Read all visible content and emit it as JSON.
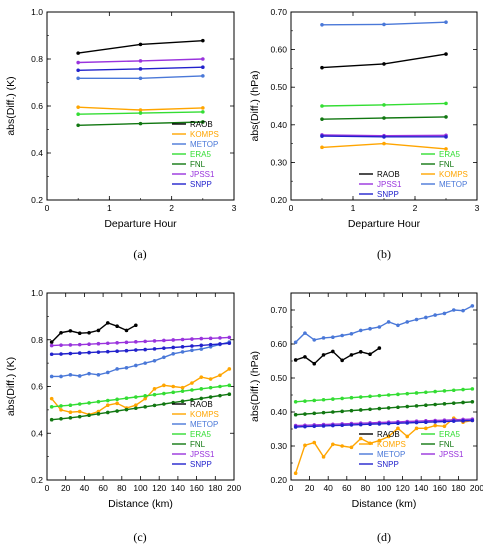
{
  "chart_data": [
    {
      "type": "line",
      "panel_label": "(a)",
      "xlabel": "Departure Hour",
      "ylabel": "abs(Diff.) (K)",
      "xlim": [
        0,
        3
      ],
      "ylim": [
        0.2,
        1.0
      ],
      "xticks": [
        0,
        1,
        2,
        3
      ],
      "yticks": [
        0.2,
        0.4,
        0.6,
        0.8,
        1.0
      ],
      "ytick_labels": [
        "0.2",
        "0.4",
        "0.6",
        "0.8",
        "1.0"
      ],
      "legend_position": "lower-right",
      "legend_columns": 1,
      "series": [
        {
          "name": "RAOB",
          "color": "#000000",
          "x": [
            0.5,
            1.5,
            2.5
          ],
          "y": [
            0.825,
            0.862,
            0.878
          ]
        },
        {
          "name": "KOMPS",
          "color": "#ffa500",
          "x": [
            0.5,
            1.5,
            2.5
          ],
          "y": [
            0.595,
            0.583,
            0.592
          ]
        },
        {
          "name": "METOP",
          "color": "#4a78d8",
          "x": [
            0.5,
            1.5,
            2.5
          ],
          "y": [
            0.718,
            0.718,
            0.728
          ]
        },
        {
          "name": "ERA5",
          "color": "#33dd33",
          "x": [
            0.5,
            1.5,
            2.5
          ],
          "y": [
            0.565,
            0.57,
            0.575
          ]
        },
        {
          "name": "FNL",
          "color": "#117711",
          "x": [
            0.5,
            1.5,
            2.5
          ],
          "y": [
            0.518,
            0.525,
            0.532
          ]
        },
        {
          "name": "JPSS1",
          "color": "#9933dd",
          "x": [
            0.5,
            1.5,
            2.5
          ],
          "y": [
            0.785,
            0.792,
            0.8
          ]
        },
        {
          "name": "SNPP",
          "color": "#2222cc",
          "x": [
            0.5,
            1.5,
            2.5
          ],
          "y": [
            0.752,
            0.758,
            0.765
          ]
        }
      ]
    },
    {
      "type": "line",
      "panel_label": "(b)",
      "xlabel": "Departure Hour",
      "ylabel": "abs(Diff.) (hPa)",
      "xlim": [
        0,
        3
      ],
      "ylim": [
        0.2,
        0.7
      ],
      "xticks": [
        0,
        1,
        2,
        3
      ],
      "yticks": [
        0.2,
        0.3,
        0.4,
        0.5,
        0.6,
        0.7
      ],
      "ytick_labels": [
        "0.20",
        "0.30",
        "0.40",
        "0.50",
        "0.60",
        "0.70"
      ],
      "legend_position": "lower-right",
      "legend_columns": 2,
      "legend_order": [
        "ERA5",
        "FNL",
        "RAOB",
        "KOMPS",
        "JPSS1",
        "METOP",
        "SNPP"
      ],
      "series": [
        {
          "name": "RAOB",
          "color": "#000000",
          "x": [
            0.5,
            1.5,
            2.5
          ],
          "y": [
            0.552,
            0.562,
            0.588
          ]
        },
        {
          "name": "KOMPS",
          "color": "#ffa500",
          "x": [
            0.5,
            1.5,
            2.5
          ],
          "y": [
            0.34,
            0.35,
            0.336
          ]
        },
        {
          "name": "METOP",
          "color": "#4a78d8",
          "x": [
            0.5,
            1.5,
            2.5
          ],
          "y": [
            0.666,
            0.667,
            0.673
          ]
        },
        {
          "name": "ERA5",
          "color": "#33dd33",
          "x": [
            0.5,
            1.5,
            2.5
          ],
          "y": [
            0.45,
            0.453,
            0.457
          ]
        },
        {
          "name": "FNL",
          "color": "#117711",
          "x": [
            0.5,
            1.5,
            2.5
          ],
          "y": [
            0.415,
            0.418,
            0.421
          ]
        },
        {
          "name": "JPSS1",
          "color": "#9933dd",
          "x": [
            0.5,
            1.5,
            2.5
          ],
          "y": [
            0.373,
            0.371,
            0.372
          ]
        },
        {
          "name": "SNPP",
          "color": "#2222cc",
          "x": [
            0.5,
            1.5,
            2.5
          ],
          "y": [
            0.37,
            0.368,
            0.368
          ]
        }
      ]
    },
    {
      "type": "line",
      "panel_label": "(c)",
      "xlabel": "Distance (km)",
      "ylabel": "abs(Diff.) (K)",
      "xlim": [
        0,
        200
      ],
      "ylim": [
        0.2,
        1.0
      ],
      "xticks": [
        0,
        20,
        40,
        60,
        80,
        100,
        120,
        140,
        160,
        180,
        200
      ],
      "yticks": [
        0.2,
        0.4,
        0.6,
        0.8,
        1.0
      ],
      "ytick_labels": [
        "0.2",
        "0.4",
        "0.6",
        "0.8",
        "1.0"
      ],
      "legend_position": "lower-right",
      "legend_columns": 1,
      "series": [
        {
          "name": "RAOB",
          "color": "#000000",
          "x": [
            5,
            15,
            25,
            35,
            45,
            55,
            65,
            75,
            85,
            95
          ],
          "y": [
            0.79,
            0.83,
            0.838,
            0.828,
            0.83,
            0.84,
            0.872,
            0.858,
            0.84,
            0.862
          ]
        },
        {
          "name": "KOMPS",
          "color": "#ffa500",
          "x": [
            5,
            15,
            25,
            35,
            45,
            55,
            65,
            75,
            85,
            95,
            105,
            115,
            125,
            135,
            145,
            155,
            165,
            175,
            185,
            195
          ],
          "y": [
            0.548,
            0.5,
            0.49,
            0.493,
            0.48,
            0.493,
            0.52,
            0.528,
            0.508,
            0.52,
            0.548,
            0.59,
            0.605,
            0.6,
            0.595,
            0.615,
            0.64,
            0.632,
            0.648,
            0.675
          ]
        },
        {
          "name": "METOP",
          "color": "#4a78d8",
          "x": [
            5,
            15,
            25,
            35,
            45,
            55,
            65,
            75,
            85,
            95,
            105,
            115,
            125,
            135,
            145,
            155,
            165,
            175,
            185,
            195
          ],
          "y": [
            0.643,
            0.643,
            0.65,
            0.645,
            0.655,
            0.65,
            0.66,
            0.675,
            0.68,
            0.69,
            0.7,
            0.71,
            0.725,
            0.74,
            0.748,
            0.755,
            0.76,
            0.77,
            0.78,
            0.79
          ]
        },
        {
          "name": "ERA5",
          "color": "#33dd33",
          "x": [
            5,
            15,
            25,
            35,
            45,
            55,
            65,
            75,
            85,
            95,
            105,
            115,
            125,
            135,
            145,
            155,
            165,
            175,
            185,
            195
          ],
          "y": [
            0.513,
            0.517,
            0.52,
            0.525,
            0.53,
            0.535,
            0.54,
            0.545,
            0.55,
            0.555,
            0.56,
            0.565,
            0.57,
            0.575,
            0.58,
            0.585,
            0.59,
            0.595,
            0.6,
            0.605
          ]
        },
        {
          "name": "FNL",
          "color": "#117711",
          "x": [
            5,
            15,
            25,
            35,
            45,
            55,
            65,
            75,
            85,
            95,
            105,
            115,
            125,
            135,
            145,
            155,
            165,
            175,
            185,
            195
          ],
          "y": [
            0.458,
            0.462,
            0.466,
            0.471,
            0.477,
            0.483,
            0.489,
            0.495,
            0.501,
            0.507,
            0.513,
            0.519,
            0.525,
            0.531,
            0.537,
            0.543,
            0.549,
            0.555,
            0.561,
            0.567
          ]
        },
        {
          "name": "JPSS1",
          "color": "#9933dd",
          "x": [
            5,
            15,
            25,
            35,
            45,
            55,
            65,
            75,
            85,
            95,
            105,
            115,
            125,
            135,
            145,
            155,
            165,
            175,
            185,
            195
          ],
          "y": [
            0.775,
            0.777,
            0.778,
            0.779,
            0.781,
            0.783,
            0.785,
            0.787,
            0.789,
            0.791,
            0.793,
            0.795,
            0.797,
            0.799,
            0.801,
            0.803,
            0.805,
            0.806,
            0.808,
            0.81
          ]
        },
        {
          "name": "SNPP",
          "color": "#2222cc",
          "x": [
            5,
            15,
            25,
            35,
            45,
            55,
            65,
            75,
            85,
            95,
            105,
            115,
            125,
            135,
            145,
            155,
            165,
            175,
            185,
            195
          ],
          "y": [
            0.738,
            0.739,
            0.741,
            0.743,
            0.745,
            0.747,
            0.749,
            0.751,
            0.753,
            0.756,
            0.758,
            0.761,
            0.764,
            0.767,
            0.77,
            0.773,
            0.776,
            0.779,
            0.782,
            0.785
          ]
        }
      ]
    },
    {
      "type": "line",
      "panel_label": "(d)",
      "xlabel": "Distance (km)",
      "ylabel": "abs(Diff.) (hPa)",
      "xlim": [
        0,
        200
      ],
      "ylim": [
        0.2,
        0.75
      ],
      "xticks": [
        0,
        20,
        40,
        60,
        80,
        100,
        120,
        140,
        160,
        180,
        200
      ],
      "yticks": [
        0.2,
        0.3,
        0.4,
        0.5,
        0.6,
        0.7
      ],
      "ytick_labels": [
        "0.20",
        "0.30",
        "0.40",
        "0.50",
        "0.60",
        "0.70"
      ],
      "legend_position": "lower-right",
      "legend_columns": 2,
      "legend_order": [
        "RAOB",
        "ERA5",
        "KOMPS",
        "FNL",
        "METOP",
        "JPSS1",
        "SNPP"
      ],
      "series": [
        {
          "name": "RAOB",
          "color": "#000000",
          "x": [
            5,
            15,
            25,
            35,
            45,
            55,
            65,
            75,
            85,
            95
          ],
          "y": [
            0.553,
            0.562,
            0.542,
            0.568,
            0.578,
            0.552,
            0.568,
            0.577,
            0.57,
            0.588
          ]
        },
        {
          "name": "KOMPS",
          "color": "#ffa500",
          "x": [
            5,
            15,
            25,
            35,
            45,
            55,
            65,
            75,
            85,
            95,
            105,
            115,
            125,
            135,
            145,
            155,
            165,
            175,
            185,
            195
          ],
          "y": [
            0.22,
            0.302,
            0.31,
            0.268,
            0.305,
            0.3,
            0.296,
            0.322,
            0.308,
            0.316,
            0.328,
            0.352,
            0.328,
            0.352,
            0.352,
            0.36,
            0.358,
            0.382,
            0.37,
            0.375
          ]
        },
        {
          "name": "METOP",
          "color": "#4a78d8",
          "x": [
            5,
            15,
            25,
            35,
            45,
            55,
            65,
            75,
            85,
            95,
            105,
            115,
            125,
            135,
            145,
            155,
            165,
            175,
            185,
            195
          ],
          "y": [
            0.605,
            0.632,
            0.612,
            0.618,
            0.62,
            0.625,
            0.63,
            0.64,
            0.645,
            0.65,
            0.665,
            0.655,
            0.665,
            0.672,
            0.678,
            0.685,
            0.69,
            0.7,
            0.698,
            0.712
          ]
        },
        {
          "name": "ERA5",
          "color": "#33dd33",
          "x": [
            5,
            15,
            25,
            35,
            45,
            55,
            65,
            75,
            85,
            95,
            105,
            115,
            125,
            135,
            145,
            155,
            165,
            175,
            185,
            195
          ],
          "y": [
            0.43,
            0.432,
            0.434,
            0.436,
            0.438,
            0.44,
            0.442,
            0.444,
            0.446,
            0.448,
            0.45,
            0.452,
            0.454,
            0.456,
            0.458,
            0.46,
            0.462,
            0.464,
            0.466,
            0.468
          ]
        },
        {
          "name": "FNL",
          "color": "#117711",
          "x": [
            5,
            15,
            25,
            35,
            45,
            55,
            65,
            75,
            85,
            95,
            105,
            115,
            125,
            135,
            145,
            155,
            165,
            175,
            185,
            195
          ],
          "y": [
            0.392,
            0.394,
            0.396,
            0.398,
            0.4,
            0.402,
            0.404,
            0.406,
            0.408,
            0.41,
            0.412,
            0.414,
            0.416,
            0.418,
            0.42,
            0.422,
            0.424,
            0.426,
            0.428,
            0.43
          ]
        },
        {
          "name": "JPSS1",
          "color": "#9933dd",
          "x": [
            5,
            15,
            25,
            35,
            45,
            55,
            65,
            75,
            85,
            95,
            105,
            115,
            125,
            135,
            145,
            155,
            165,
            175,
            185,
            195
          ],
          "y": [
            0.36,
            0.361,
            0.362,
            0.363,
            0.364,
            0.365,
            0.366,
            0.367,
            0.368,
            0.369,
            0.37,
            0.371,
            0.372,
            0.373,
            0.374,
            0.375,
            0.376,
            0.377,
            0.378,
            0.379
          ]
        },
        {
          "name": "SNPP",
          "color": "#2222cc",
          "x": [
            5,
            15,
            25,
            35,
            45,
            55,
            65,
            75,
            85,
            95,
            105,
            115,
            125,
            135,
            145,
            155,
            165,
            175,
            185,
            195
          ],
          "y": [
            0.356,
            0.357,
            0.358,
            0.359,
            0.36,
            0.361,
            0.362,
            0.363,
            0.364,
            0.365,
            0.366,
            0.367,
            0.368,
            0.369,
            0.37,
            0.371,
            0.372,
            0.373,
            0.374,
            0.375
          ]
        }
      ]
    }
  ]
}
